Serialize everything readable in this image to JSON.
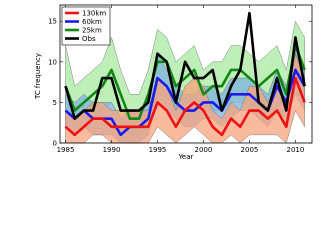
{
  "chart_data": {
    "type": "line",
    "xlabel": "Year",
    "ylabel": "TC frequency",
    "x": [
      1985,
      1986,
      1987,
      1988,
      1989,
      1990,
      1991,
      1992,
      1993,
      1994,
      1995,
      1996,
      1997,
      1998,
      1999,
      2000,
      2001,
      2002,
      2003,
      2004,
      2005,
      2006,
      2007,
      2008,
      2009,
      2010,
      2011
    ],
    "xlim": [
      1984.4,
      2011.8
    ],
    "xticks": [
      1985,
      1990,
      1995,
      2000,
      2005,
      2010
    ],
    "ylim": [
      0,
      17
    ],
    "yticks": [
      0,
      5,
      10,
      15
    ],
    "legend": "upper left",
    "series": [
      {
        "name": "130km",
        "color": "#ee1111",
        "band_color": "#f7a37c",
        "values": [
          2,
          1,
          2,
          3,
          3,
          2,
          2,
          2,
          2,
          2,
          5,
          4,
          2,
          4,
          5,
          4,
          2,
          1,
          3,
          2,
          4,
          4,
          3,
          4,
          2,
          8,
          5
        ],
        "lower": [
          0,
          0,
          0,
          1,
          1,
          0,
          0,
          0,
          0,
          0,
          2,
          1,
          0,
          1,
          2,
          1,
          0,
          0,
          1,
          0,
          1,
          1,
          1,
          1,
          0,
          4,
          2
        ],
        "upper": [
          4,
          3,
          4,
          5,
          5,
          4,
          4,
          4,
          4,
          4,
          8,
          7,
          4,
          7,
          8,
          7,
          4,
          3,
          5,
          4,
          7,
          7,
          5,
          7,
          4,
          11,
          8
        ]
      },
      {
        "name": "60km",
        "color": "#1a1aee",
        "band_color": "#7fb2dd",
        "values": [
          4,
          3,
          4,
          3,
          3,
          3,
          1,
          2,
          2,
          3,
          8,
          7,
          5,
          4,
          4,
          5,
          5,
          4,
          6,
          6,
          6,
          5,
          4,
          7,
          5,
          9,
          7
        ],
        "lower": [
          2,
          1,
          2,
          1,
          1,
          1,
          0,
          0,
          0,
          1,
          5,
          4,
          3,
          2,
          2,
          3,
          3,
          2,
          3,
          4,
          4,
          3,
          2,
          4,
          3,
          6,
          4
        ],
        "upper": [
          6,
          5,
          6,
          5,
          5,
          5,
          3,
          4,
          4,
          5,
          11,
          9,
          7,
          6,
          6,
          7,
          7,
          6,
          8,
          8,
          8,
          7,
          6,
          9,
          7,
          12,
          9
        ]
      },
      {
        "name": "25km",
        "color": "#118811",
        "band_color": "#a8eaa0",
        "values": [
          7,
          4,
          5,
          6,
          7,
          9,
          6,
          3,
          3,
          6,
          10,
          10,
          7,
          8,
          9,
          6,
          7,
          7,
          9,
          9,
          8,
          7,
          8,
          9,
          6,
          12,
          9
        ],
        "lower": [
          4,
          2,
          3,
          3,
          4,
          5,
          3,
          1,
          1,
          3,
          6,
          6,
          4,
          5,
          5,
          4,
          4,
          4,
          5,
          5,
          5,
          4,
          5,
          6,
          4,
          8,
          6
        ],
        "upper": [
          12,
          7,
          8,
          9,
          10,
          13,
          9,
          6,
          6,
          9,
          14,
          13,
          10,
          11,
          12,
          9,
          10,
          10,
          12,
          12,
          11,
          10,
          11,
          12,
          9,
          15,
          13
        ]
      },
      {
        "name": "Obs",
        "color": "#000000",
        "values": [
          7,
          3,
          4,
          4,
          8,
          8,
          4,
          4,
          4,
          5,
          11,
          10,
          5,
          10,
          8,
          8,
          9,
          4,
          7,
          9,
          16,
          5,
          4,
          8,
          4,
          13,
          7
        ]
      }
    ]
  }
}
